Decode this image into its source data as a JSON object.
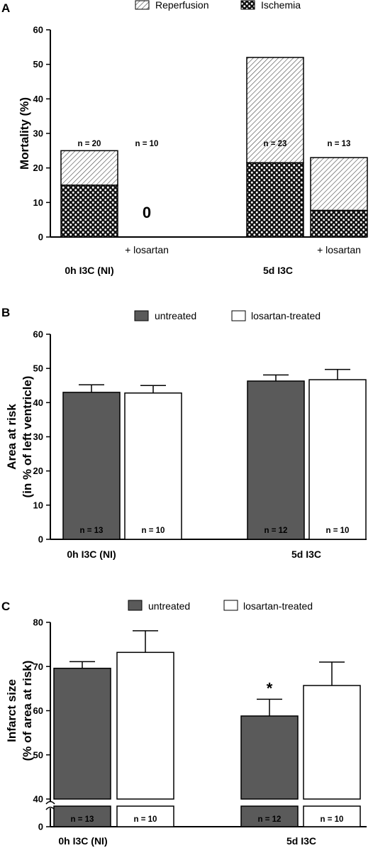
{
  "chart_data": [
    {
      "panel": "A",
      "type": "bar",
      "stacked": true,
      "ylabel": "Mortality (%)",
      "ylim": [
        0,
        60
      ],
      "yticks": [
        0,
        10,
        20,
        30,
        40,
        50,
        60
      ],
      "legend": [
        "Reperfusion",
        "Ischemia"
      ],
      "groups": [
        "0h I3C (NI)",
        "5d I3C"
      ],
      "sub_label": "+ losartan",
      "bars": [
        {
          "group": 0,
          "ischemia": 15,
          "total": 25,
          "n": "n = 20"
        },
        {
          "group": 0,
          "ischemia": 0,
          "total": 0,
          "n": "n = 10",
          "value_label": "0",
          "sub": true
        },
        {
          "group": 1,
          "ischemia": 21.5,
          "total": 52,
          "n": "n = 23"
        },
        {
          "group": 1,
          "ischemia": 7.7,
          "total": 23,
          "n": "n = 13",
          "sub": true
        }
      ]
    },
    {
      "panel": "B",
      "type": "bar",
      "ylabel": [
        "Area at risk",
        "(in % of left ventricle)"
      ],
      "ylim": [
        0,
        60
      ],
      "yticks": [
        0,
        10,
        20,
        30,
        40,
        50,
        60
      ],
      "legend": [
        "untreated",
        "losartan-treated"
      ],
      "groups": [
        "0h I3C (NI)",
        "5d I3C"
      ],
      "series": [
        {
          "name": "untreated",
          "values": [
            43,
            46.3
          ],
          "errors": [
            2.2,
            1.8
          ],
          "n": [
            "n = 13",
            "n = 12"
          ],
          "color": "#5a5a5a"
        },
        {
          "name": "losartan-treated",
          "values": [
            42.8,
            46.7
          ],
          "errors": [
            2.2,
            3.0
          ],
          "n": [
            "n = 10",
            "n = 10"
          ],
          "color": "#ffffff"
        }
      ]
    },
    {
      "panel": "C",
      "type": "bar",
      "ylabel": [
        "Infarct size",
        "(% of area at risk)"
      ],
      "ylim": [
        40,
        80
      ],
      "axis_break": true,
      "lower_tick": "0",
      "yticks": [
        40,
        50,
        60,
        70,
        80
      ],
      "legend": [
        "untreated",
        "losartan-treated"
      ],
      "groups": [
        "0h I3C (NI)",
        "5d I3C"
      ],
      "series": [
        {
          "name": "untreated",
          "values": [
            69.6,
            58.8
          ],
          "errors": [
            1.5,
            3.8
          ],
          "n": [
            "n = 13",
            "n = 12"
          ],
          "color": "#5a5a5a"
        },
        {
          "name": "losartan-treated",
          "values": [
            73.2,
            65.7
          ],
          "errors": [
            4.9,
            5.3
          ],
          "n": [
            "n = 10",
            "n = 10"
          ],
          "color": "#ffffff"
        }
      ],
      "annotation": "*"
    }
  ]
}
